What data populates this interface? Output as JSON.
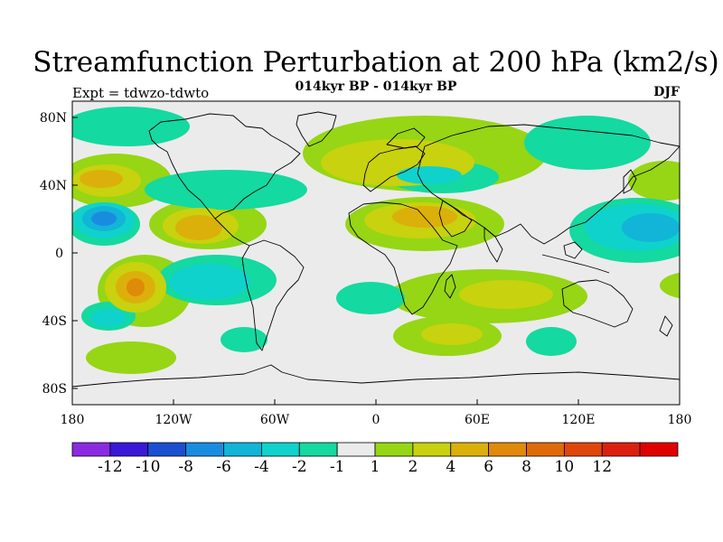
{
  "title": "Streamfunction Perturbation at 200 hPa (km2/s)",
  "subtitle": "014kyr BP - 014kyr BP",
  "experiment_label": "Expt = tdwzo-tdwto",
  "season_label": "DJF",
  "colors": {
    "background": "#ffffff",
    "map_fill": "#ebebeb",
    "coastline": "#000000"
  },
  "axes": {
    "lat_ticks": [
      "80N",
      "40N",
      "0",
      "40S",
      "80S"
    ],
    "lon_ticks": [
      "180",
      "120W",
      "60W",
      "0",
      "60E",
      "120E",
      "180"
    ]
  },
  "colorbar": {
    "colors": [
      "#8a2be2",
      "#3a18d8",
      "#1a4fd0",
      "#1a8ce0",
      "#12b4d8",
      "#10d2cc",
      "#14d9a0",
      "#ebebeb",
      "#96d614",
      "#c8d20e",
      "#dcb00a",
      "#e08a0a",
      "#e06a08",
      "#e0460a",
      "#dc2010",
      "#e00000"
    ],
    "labels": [
      "-12",
      "-10",
      "-8",
      "-6",
      "-4",
      "-2",
      "-1",
      "1",
      "2",
      "4",
      "6",
      "8",
      "10",
      "12"
    ]
  },
  "chart_data": {
    "type": "heatmap",
    "title": "Streamfunction Perturbation at 200 hPa (km2/s)",
    "units": "km2/s",
    "projection": "cylindrical equidistant",
    "lon_range": [
      -180,
      180
    ],
    "lat_range": [
      -90,
      90
    ],
    "contour_levels": [
      -12,
      -10,
      -8,
      -6,
      -4,
      -2,
      -1,
      1,
      2,
      4,
      6,
      8,
      10,
      12
    ],
    "anomaly_regions": [
      {
        "name": "north-pacific-positive",
        "lon": [
          -180,
          -130
        ],
        "lat": [
          25,
          55
        ],
        "peak": 5
      },
      {
        "name": "central-pacific-negative",
        "lon": [
          -180,
          -125
        ],
        "lat": [
          0,
          35
        ],
        "peak": -8
      },
      {
        "name": "south-pacific-positive",
        "lon": [
          -170,
          -120
        ],
        "lat": [
          -45,
          -10
        ],
        "peak": 9
      },
      {
        "name": "south-pacific-negative",
        "lon": [
          -180,
          -150
        ],
        "lat": [
          -50,
          -30
        ],
        "peak": -4
      },
      {
        "name": "tropical-east-pacific-positive",
        "lon": [
          -125,
          -65
        ],
        "lat": [
          0,
          35
        ],
        "peak": 6
      },
      {
        "name": "north-america-negative",
        "lon": [
          -140,
          -40
        ],
        "lat": [
          20,
          70
        ],
        "peak": -4
      },
      {
        "name": "south-america-negative",
        "lon": [
          -130,
          -50
        ],
        "lat": [
          -35,
          0
        ],
        "peak": -4
      },
      {
        "name": "arctic-negative",
        "lon": [
          -180,
          -80
        ],
        "lat": [
          65,
          90
        ],
        "peak": -2
      },
      {
        "name": "north-atlantic-positive",
        "lon": [
          -40,
          40
        ],
        "lat": [
          40,
          75
        ],
        "peak": 4
      },
      {
        "name": "europe-negative",
        "lon": [
          20,
          80
        ],
        "lat": [
          35,
          55
        ],
        "peak": -2
      },
      {
        "name": "north-africa-positive",
        "lon": [
          -15,
          80
        ],
        "lat": [
          5,
          35
        ],
        "peak": 6
      },
      {
        "name": "south-atlantic-negative",
        "lon": [
          -25,
          25
        ],
        "lat": [
          -35,
          -15
        ],
        "peak": -4
      },
      {
        "name": "south-indian-positive",
        "lon": [
          40,
          120
        ],
        "lat": [
          -40,
          -5
        ],
        "peak": 4
      },
      {
        "name": "southern-ocean-positive",
        "lon": [
          10,
          70
        ],
        "lat": [
          -65,
          -40
        ],
        "peak": 4
      },
      {
        "name": "west-pacific-negative",
        "lon": [
          110,
          180
        ],
        "lat": [
          0,
          35
        ],
        "peak": -6
      },
      {
        "name": "north-west-pacific-positive",
        "lon": [
          120,
          180
        ],
        "lat": [
          20,
          50
        ],
        "peak": 4
      },
      {
        "name": "far-south-pacific-positive",
        "lon": [
          -180,
          -130
        ],
        "lat": [
          -75,
          -55
        ],
        "peak": 2
      }
    ]
  }
}
